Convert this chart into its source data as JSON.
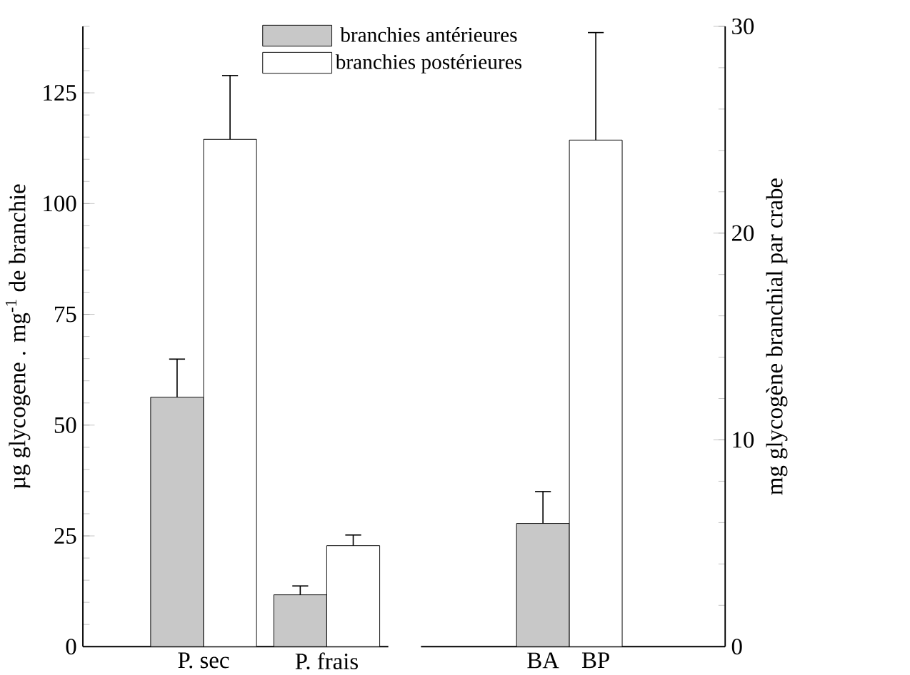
{
  "chart_data": [
    {
      "type": "bar",
      "categories": [
        "P. sec",
        "P. frais"
      ],
      "ylabel": "µg glycogene . mg$^{-1}$ de branchie",
      "ylim": [
        0,
        140
      ],
      "yticks": [
        0,
        25,
        50,
        75,
        100,
        125
      ],
      "legend": "top right",
      "series": [
        {
          "name": "branchies antérieures",
          "color": "#c8c8c8",
          "values": [
            56.3,
            11.7
          ],
          "errors": [
            [
              56.3,
              64.9
            ],
            [
              11.7,
              13.7
            ]
          ]
        },
        {
          "name": "branchies postérieures",
          "color": "#ffffff",
          "values": [
            114.5,
            22.8
          ],
          "errors": [
            [
              114.5,
              128.9
            ],
            [
              22.8,
              25.2
            ]
          ]
        }
      ]
    },
    {
      "type": "bar",
      "categories": [
        "BA",
        "BP"
      ],
      "y2label": "mg glycogène branchial par crabe",
      "y2lim": [
        0,
        30
      ],
      "y2ticks": [
        0,
        10,
        20,
        30
      ],
      "series": [
        {
          "color": "#c8c8c8",
          "axis": "y2",
          "values": [
            5.96,
            null
          ],
          "errors": [
            [
              5.96,
              7.5
            ],
            null
          ]
        },
        {
          "color": "#ffffff",
          "axis": "y2",
          "values": [
            null,
            24.5
          ],
          "errors": [
            null,
            [
              24.5,
              29.7
            ]
          ]
        }
      ]
    }
  ]
}
